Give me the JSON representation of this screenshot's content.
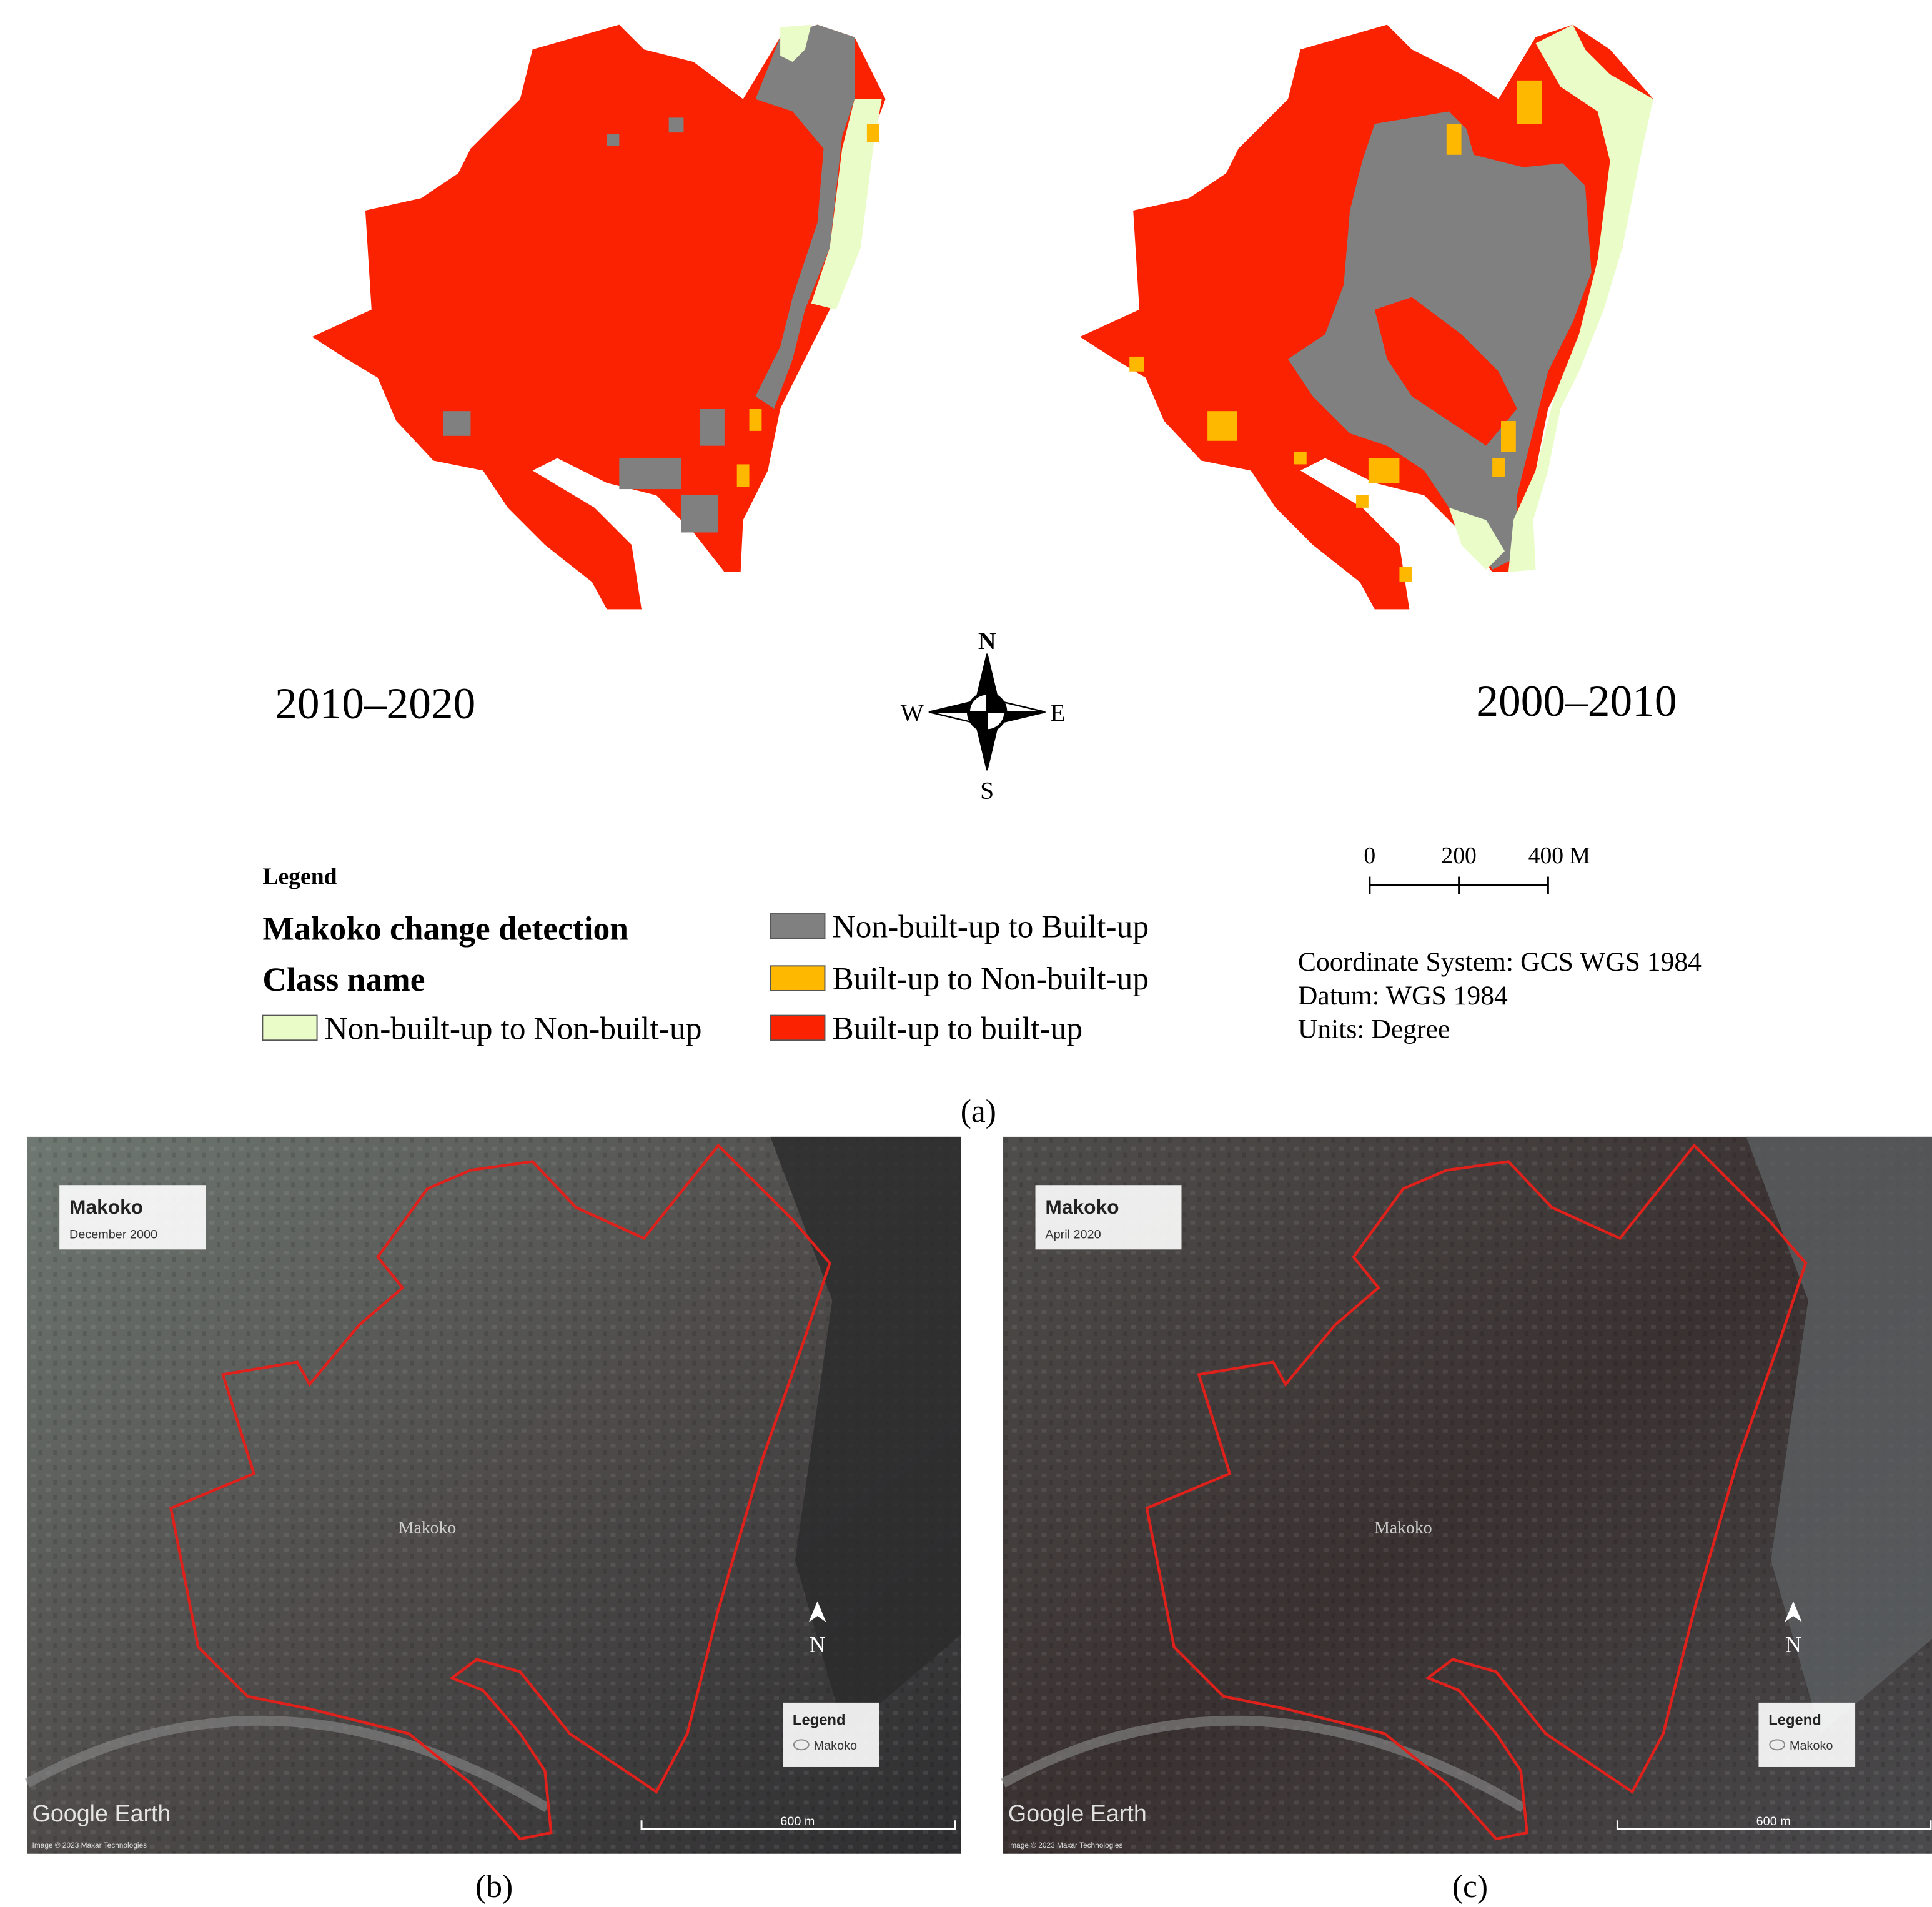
{
  "panel_a": {
    "maps": [
      {
        "label": "2010–2020"
      },
      {
        "label": "2000–2010"
      }
    ],
    "compass": {
      "n": "N",
      "s": "S",
      "e": "E",
      "w": "W"
    },
    "legend": {
      "heading": "Legend",
      "title": "Makoko change detection",
      "subtitle": "Class name",
      "classes": [
        {
          "name": "Non-built-up to Non-built-up",
          "color": "#eafcc8"
        },
        {
          "name": "Non-built-up to Built-up",
          "color": "#808080"
        },
        {
          "name": "Built-up to Non-built-up",
          "color": "#ffb800"
        },
        {
          "name": "Built-up to built-up",
          "color": "#fa2200"
        }
      ]
    },
    "scale_bar": {
      "ticks": [
        "0",
        "200",
        "400 M"
      ]
    },
    "coordinates": [
      "Coordinate System: GCS WGS 1984",
      "Datum: WGS 1984",
      "Units: Degree"
    ],
    "caption": "(a)"
  },
  "panel_b": {
    "title": "Makoko",
    "date": "December 2000",
    "place": "Makoko",
    "north": "N",
    "legend_title": "Legend",
    "legend_item": "Makoko",
    "brand": "Google Earth",
    "credit": "Image © 2023 Maxar Technologies",
    "scale": "600 m",
    "caption": "(b)"
  },
  "panel_c": {
    "title": "Makoko",
    "date": "April 2020",
    "place": "Makoko",
    "north": "N",
    "legend_title": "Legend",
    "legend_item": "Makoko",
    "brand": "Google Earth",
    "credit": "Image © 2023 Maxar Technologies",
    "scale": "600 m",
    "caption": "(c)"
  }
}
